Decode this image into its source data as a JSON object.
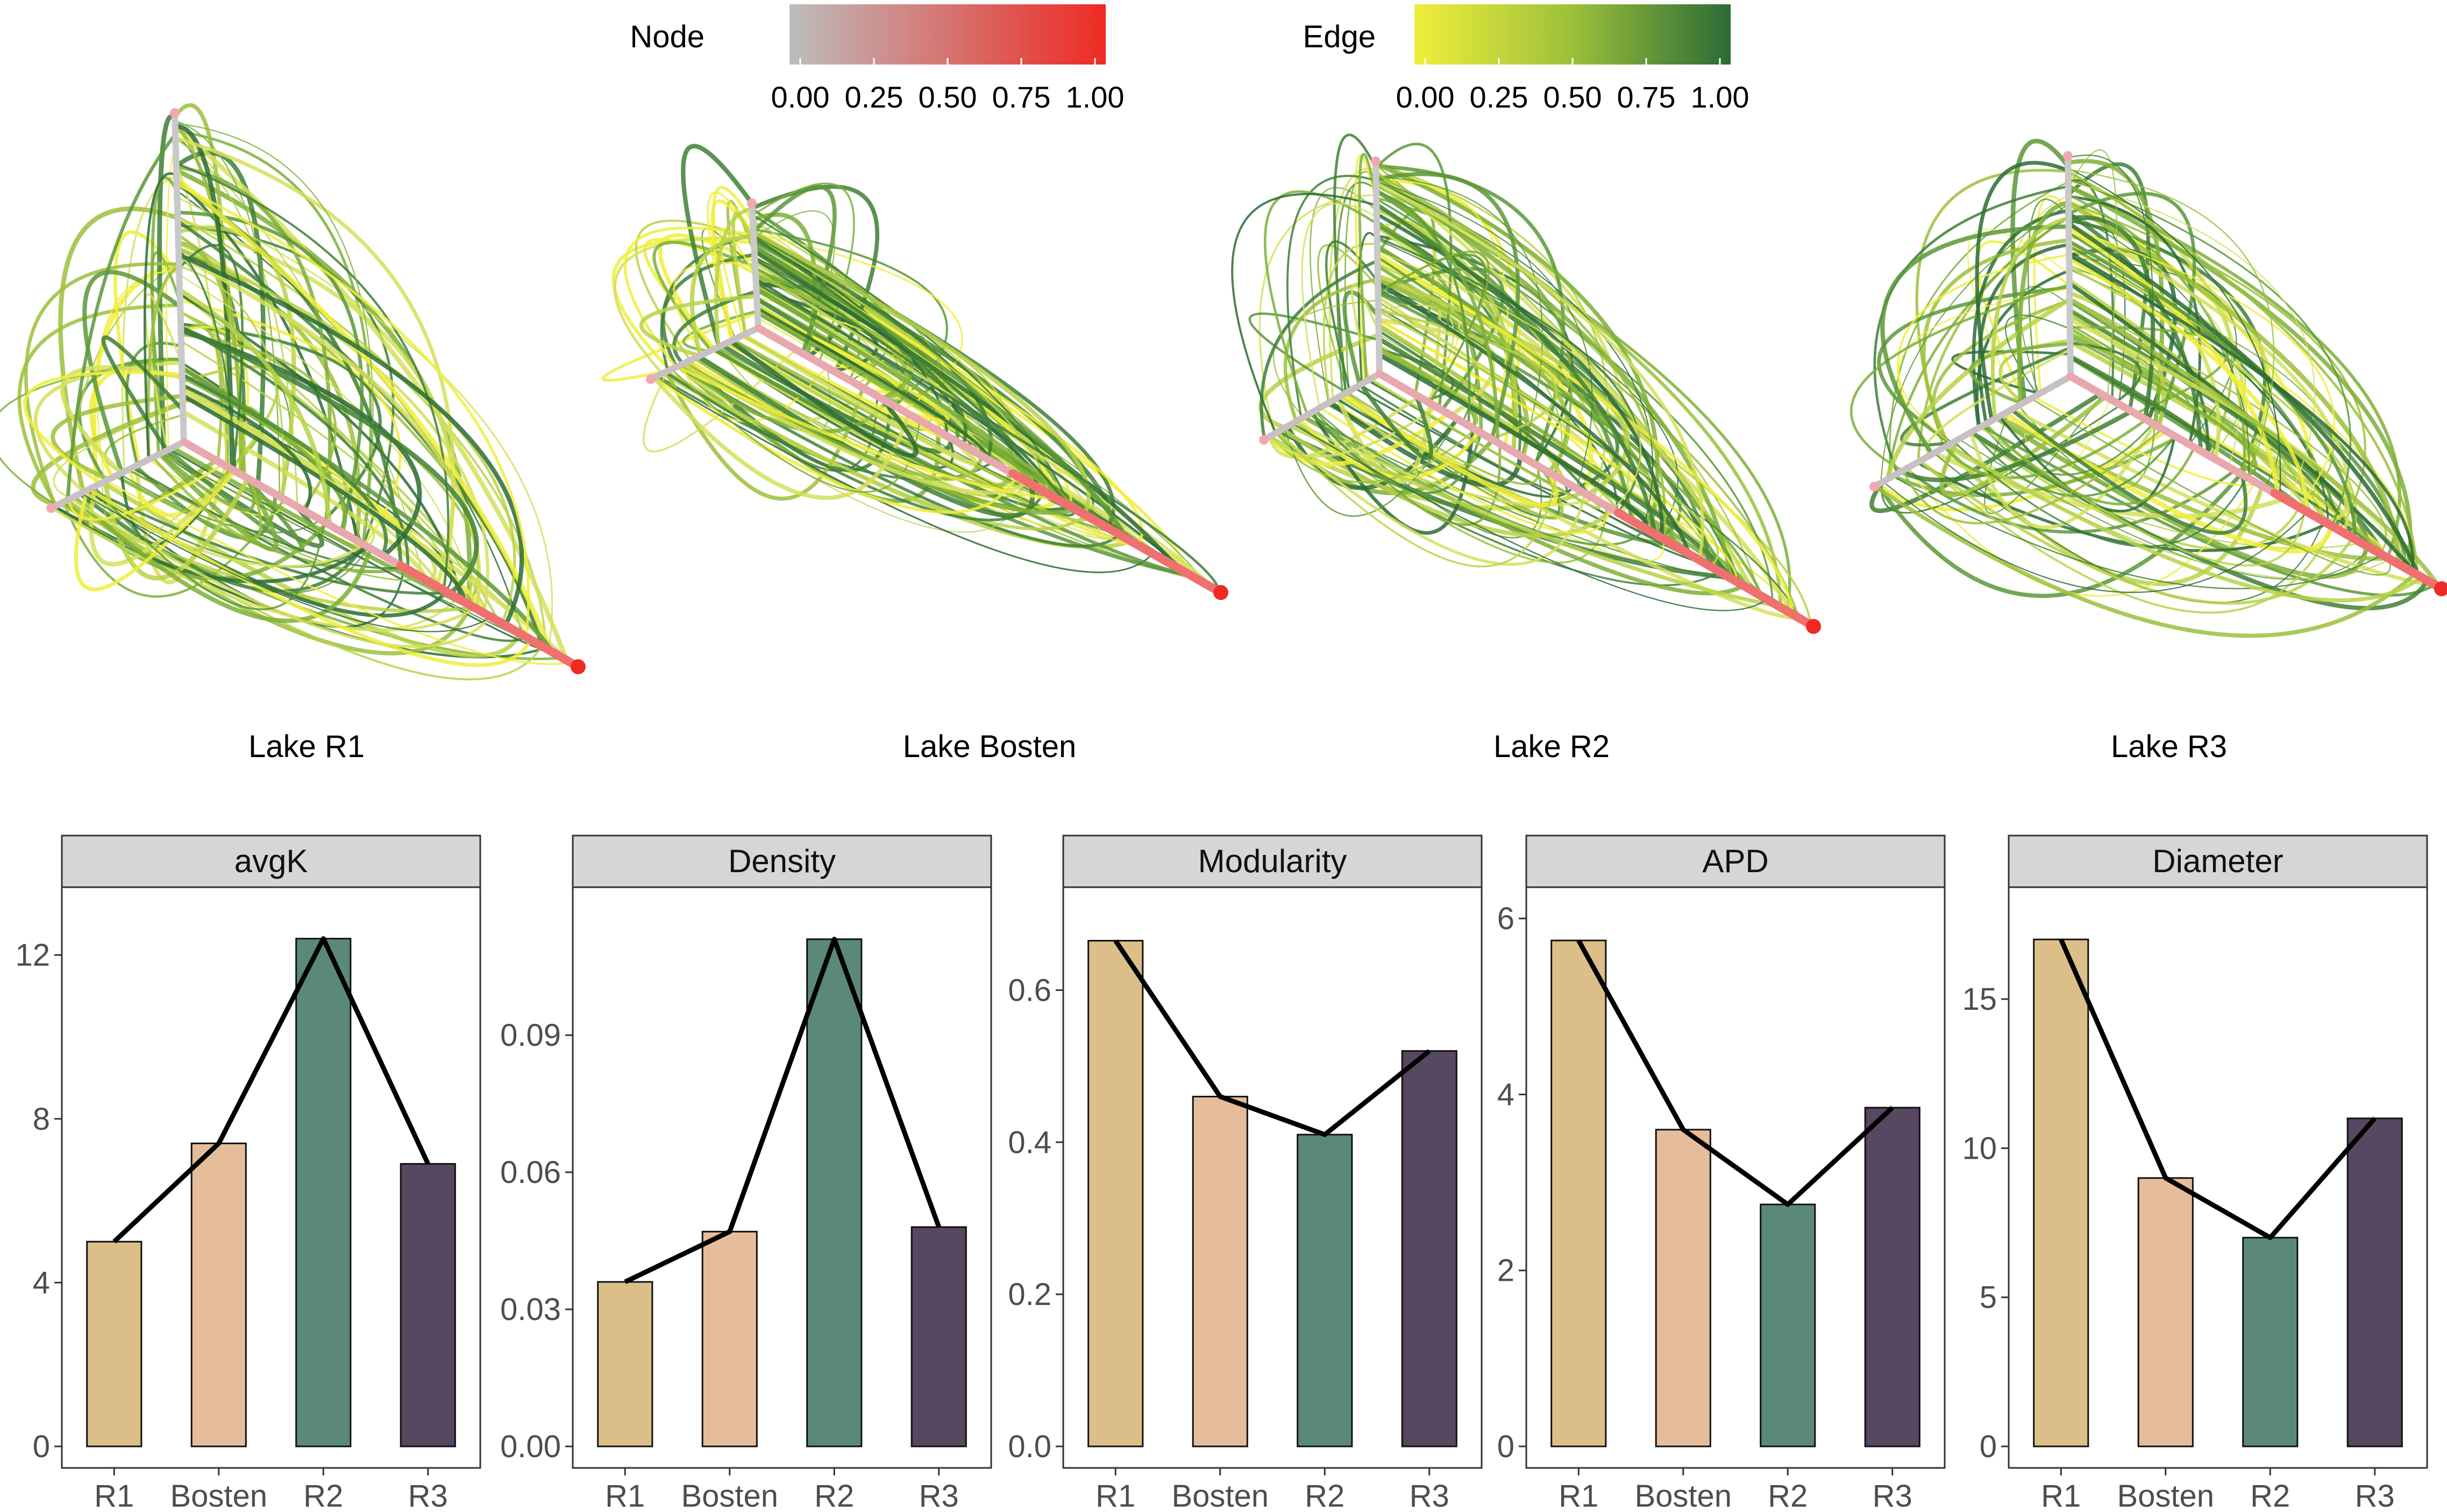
{
  "legends": {
    "node": {
      "title": "Node",
      "ticks": [
        "0.00",
        "0.25",
        "0.50",
        "0.75",
        "1.00"
      ],
      "colors": [
        "#bdbdbd",
        "#ee2a23"
      ]
    },
    "edge": {
      "title": "Edge",
      "ticks": [
        "0.00",
        "0.25",
        "0.50",
        "0.75",
        "1.00"
      ],
      "colors": [
        "#f0ee3b",
        "#9cc03b",
        "#2b6b35"
      ]
    }
  },
  "networks": [
    {
      "label": "Lake R1"
    },
    {
      "label": "Lake Bosten"
    },
    {
      "label": "Lake R2"
    },
    {
      "label": "Lake R3"
    }
  ],
  "colors": {
    "R1": "#dcbf88",
    "Bosten": "#e6bd9b",
    "R2": "#5a8a77",
    "R3": "#574760",
    "strip": "#d6d6d8",
    "line": "#000000"
  },
  "chart_data": [
    {
      "type": "bar",
      "title": "avgK",
      "categories": [
        "R1",
        "Bosten",
        "R2",
        "R3"
      ],
      "values": [
        5.0,
        7.4,
        12.4,
        6.9
      ],
      "ylim": [
        0,
        13.0
      ],
      "yticks": [
        0,
        4,
        8,
        12
      ],
      "ytick_labels": [
        "0",
        "4",
        "8",
        "12"
      ],
      "overlay": "line connecting bar tops"
    },
    {
      "type": "bar",
      "title": "Density",
      "categories": [
        "R1",
        "Bosten",
        "R2",
        "R3"
      ],
      "values": [
        0.036,
        0.047,
        0.111,
        0.048
      ],
      "ylim": [
        0,
        0.1165
      ],
      "yticks": [
        0,
        0.03,
        0.06,
        0.09
      ],
      "ytick_labels": [
        "0.00",
        "0.03",
        "0.06",
        "0.09"
      ],
      "overlay": "line connecting bar tops"
    },
    {
      "type": "bar",
      "title": "Modularity",
      "categories": [
        "R1",
        "Bosten",
        "R2",
        "R3"
      ],
      "values": [
        0.665,
        0.46,
        0.41,
        0.52
      ],
      "ylim": [
        0,
        0.7
      ],
      "yticks": [
        0,
        0.2,
        0.4,
        0.6
      ],
      "ytick_labels": [
        "0.0",
        "0.2",
        "0.4",
        "0.6"
      ],
      "overlay": "line connecting bar tops"
    },
    {
      "type": "bar",
      "title": "APD",
      "categories": [
        "R1",
        "Bosten",
        "R2",
        "R3"
      ],
      "values": [
        5.75,
        3.6,
        2.75,
        3.85
      ],
      "ylim": [
        0,
        6.05
      ],
      "yticks": [
        0,
        2,
        4,
        6
      ],
      "ytick_labels": [
        "0",
        "2",
        "4",
        "6"
      ],
      "overlay": "line connecting bar tops"
    },
    {
      "type": "bar",
      "title": "Diameter",
      "categories": [
        "R1",
        "Bosten",
        "R2",
        "R3"
      ],
      "values": [
        17,
        9,
        7,
        11
      ],
      "ylim": [
        0,
        17.85
      ],
      "yticks": [
        0,
        5,
        10,
        15
      ],
      "ytick_labels": [
        "0",
        "5",
        "10",
        "15"
      ],
      "overlay": "line connecting bar tops"
    }
  ]
}
